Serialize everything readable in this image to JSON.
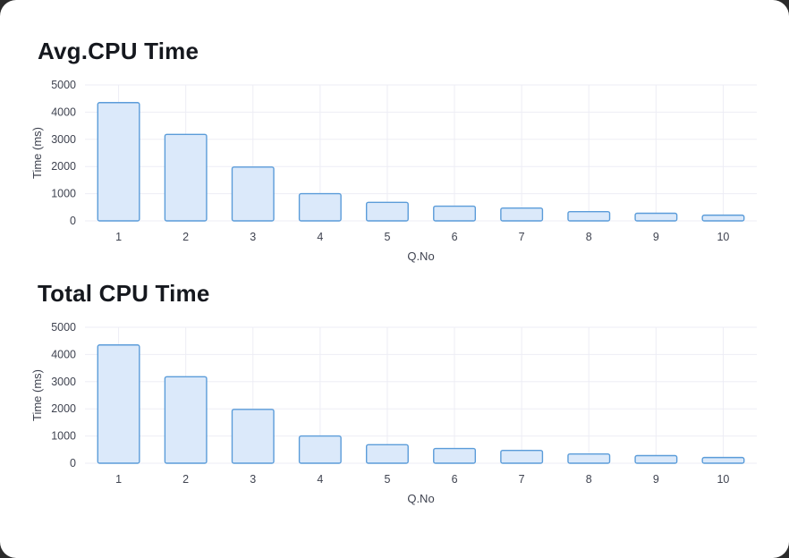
{
  "page": {
    "background": "#ffffff"
  },
  "colors": {
    "bar_fill": "#dbe9fa",
    "bar_stroke": "#5b9cd9",
    "grid": "#ededf5",
    "tick_text": "#3f4350",
    "title_text": "#15181e"
  },
  "chart_data": [
    {
      "type": "bar",
      "title": "Avg.CPU Time",
      "categories": [
        "1",
        "2",
        "3",
        "4",
        "5",
        "6",
        "7",
        "8",
        "9",
        "10"
      ],
      "values": [
        4350,
        3180,
        1980,
        1000,
        680,
        540,
        470,
        340,
        280,
        210
      ],
      "xlabel": "Q.No",
      "ylabel": "Time (ms)",
      "ylim": [
        0,
        5000
      ],
      "yticks": [
        0,
        1000,
        2000,
        3000,
        4000,
        5000
      ],
      "grid": true,
      "legend": false
    },
    {
      "type": "bar",
      "title": "Total CPU Time",
      "categories": [
        "1",
        "2",
        "3",
        "4",
        "5",
        "6",
        "7",
        "8",
        "9",
        "10"
      ],
      "values": [
        4350,
        3180,
        1980,
        1000,
        680,
        540,
        470,
        340,
        280,
        210
      ],
      "xlabel": "Q.No",
      "ylabel": "Time (ms)",
      "ylim": [
        0,
        5000
      ],
      "yticks": [
        0,
        1000,
        2000,
        3000,
        4000,
        5000
      ],
      "grid": true,
      "legend": false
    }
  ]
}
